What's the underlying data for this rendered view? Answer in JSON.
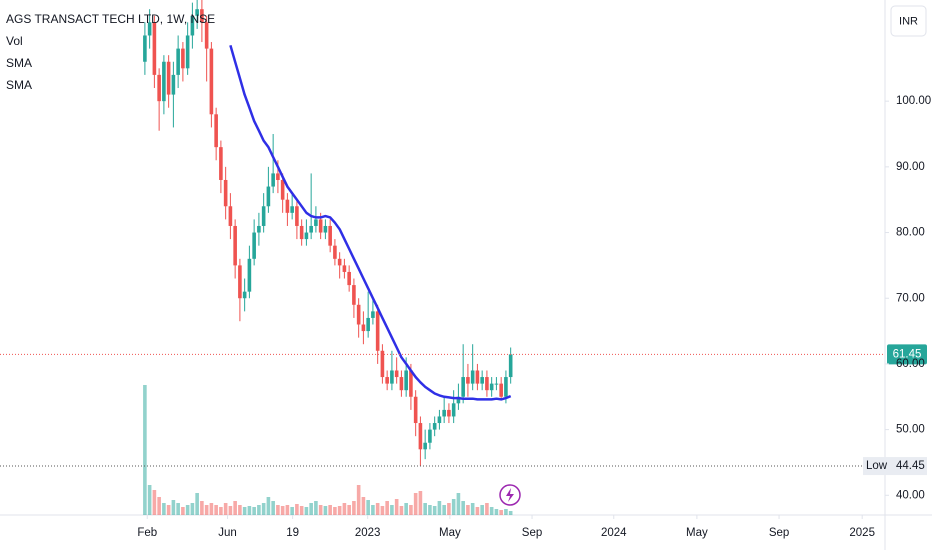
{
  "chart_data": {
    "type": "candlestick",
    "title": "AGS TRANSACT TECH LTD, 1W, NSE",
    "indicators": [
      "Vol",
      "SMA",
      "SMA"
    ],
    "currency": "INR",
    "up_color": "#26a69a",
    "down_color": "#ef5350",
    "grid": false,
    "categories": [
      null,
      null,
      null,
      null,
      null,
      null,
      null,
      null,
      null,
      null,
      null,
      null,
      null,
      null,
      null,
      null,
      null,
      null,
      null,
      null,
      null,
      null,
      null,
      null,
      null,
      null,
      null,
      null,
      null,
      null,
      null,
      null,
      null,
      null,
      null,
      null,
      null,
      null,
      null,
      null,
      null,
      null,
      null,
      null,
      null,
      null,
      null,
      null,
      null,
      null,
      null,
      null,
      null,
      null,
      null,
      null,
      null,
      null,
      null,
      null,
      null,
      null,
      null,
      null,
      null,
      null,
      null,
      null,
      null,
      null,
      null,
      null,
      null,
      null,
      null,
      null,
      null,
      null
    ],
    "open": [
      106,
      110,
      112,
      104,
      100,
      106,
      101,
      104,
      108,
      105,
      110,
      113,
      114,
      112,
      108,
      98,
      93,
      88,
      84,
      81,
      75,
      70,
      71,
      76,
      80,
      81,
      84,
      87,
      89,
      88,
      85,
      83,
      84,
      81,
      79,
      80,
      81,
      82,
      80,
      81,
      78,
      76,
      75,
      74,
      72,
      69,
      66,
      65,
      67,
      68,
      62,
      58,
      57,
      59,
      58,
      56,
      59,
      55,
      51,
      47,
      48,
      50,
      51,
      52,
      53,
      52,
      54,
      55,
      58,
      57,
      59,
      57,
      58,
      56,
      57,
      57,
      55,
      58
    ],
    "high": [
      112,
      114,
      113,
      105,
      107,
      107,
      106,
      110,
      109,
      112,
      115,
      116,
      116,
      113,
      109,
      99,
      94,
      90,
      86,
      82,
      76,
      73,
      78,
      82,
      83,
      86,
      90,
      95,
      91,
      89,
      86,
      86,
      85,
      82,
      82,
      89,
      84,
      83,
      82,
      82,
      79,
      77,
      76,
      75,
      73,
      70,
      68,
      71,
      70,
      69,
      63,
      59,
      62,
      61,
      59,
      61,
      60,
      56,
      52,
      50,
      51,
      52,
      53,
      55,
      54,
      56,
      57,
      63,
      60,
      63,
      60,
      59,
      59,
      58,
      58,
      58,
      59,
      62.5
    ],
    "low": [
      104,
      108,
      102,
      95.5,
      98,
      99,
      96,
      102,
      103,
      104,
      108,
      111,
      109,
      103,
      96,
      91,
      86,
      82,
      79,
      73,
      66.5,
      68,
      70,
      75,
      78,
      80,
      83,
      86,
      86,
      83,
      81,
      82,
      79,
      78,
      78,
      79,
      80,
      79,
      79,
      77,
      75,
      73,
      73,
      71,
      67,
      64,
      63,
      64,
      66,
      60,
      57,
      56,
      56,
      57,
      55,
      55,
      53,
      49,
      44.45,
      45.5,
      47,
      49,
      50,
      51,
      51,
      51,
      53,
      54,
      55,
      56,
      56,
      56,
      55,
      55,
      56,
      54.5,
      54,
      57
    ],
    "close": [
      110,
      112,
      104,
      100,
      106,
      101,
      104,
      108,
      105,
      110,
      113,
      114,
      112,
      108,
      98,
      93,
      88,
      84,
      81,
      75,
      70,
      71,
      76,
      80,
      81,
      84,
      87,
      89,
      88,
      85,
      83,
      84,
      81,
      79,
      80,
      81,
      82,
      80,
      81,
      78,
      76,
      75,
      74,
      72,
      69,
      66,
      65,
      67,
      68,
      62,
      58,
      57,
      59,
      58,
      56,
      59,
      55,
      51,
      47,
      48,
      50,
      51,
      52,
      53,
      52,
      54,
      55,
      58,
      57,
      59,
      57,
      58,
      56,
      57,
      57,
      55,
      58,
      61.45
    ],
    "volume": [
      130,
      30,
      25,
      18,
      12,
      10,
      15,
      12,
      8,
      10,
      12,
      22,
      14,
      10,
      12,
      10,
      8,
      12,
      9,
      14,
      10,
      8,
      9,
      8,
      10,
      12,
      18,
      14,
      10,
      9,
      10,
      8,
      11,
      9,
      8,
      12,
      14,
      10,
      9,
      10,
      8,
      9,
      12,
      10,
      14,
      30,
      18,
      15,
      10,
      12,
      9,
      14,
      10,
      16,
      9,
      12,
      10,
      22,
      24,
      12,
      10,
      9,
      14,
      10,
      12,
      16,
      22,
      14,
      10,
      12,
      8,
      10,
      12,
      8,
      6,
      5,
      6,
      4
    ],
    "sma": {
      "color": "#2f2fe6",
      "values": [
        null,
        null,
        null,
        null,
        null,
        null,
        null,
        null,
        null,
        null,
        null,
        null,
        null,
        null,
        null,
        null,
        null,
        null,
        108.5,
        106,
        103.5,
        101,
        99,
        97,
        95.5,
        94,
        93,
        91.5,
        90,
        88.5,
        87,
        86,
        85,
        84,
        83,
        82.5,
        82.3,
        82.3,
        82.5,
        82.3,
        81.5,
        80.5,
        79,
        77.5,
        76,
        74.5,
        73,
        71.5,
        70,
        68.5,
        67,
        65.5,
        64,
        62.5,
        61,
        60,
        59,
        58,
        57.2,
        56.5,
        56,
        55.5,
        55.2,
        55,
        54.9,
        54.8,
        54.8,
        54.7,
        54.7,
        54.7,
        54.6,
        54.6,
        54.6,
        54.6,
        54.7,
        54.6,
        54.8,
        55.1
      ]
    },
    "last_price": 61.45,
    "low_marker": {
      "label": "Low",
      "value": 44.45
    },
    "ylim": [
      37,
      115.4
    ],
    "yticks": [
      {
        "value": 40,
        "label": "40.00"
      },
      {
        "value": 50,
        "label": "50.00"
      },
      {
        "value": 60,
        "label": "60.00"
      },
      {
        "value": 70,
        "label": "70.00"
      },
      {
        "value": 80,
        "label": "80.00"
      },
      {
        "value": 90,
        "label": "90.00"
      },
      {
        "value": 100,
        "label": "100.00"
      }
    ],
    "xlim": [
      -30.5,
      155.8
    ],
    "xticks": [
      {
        "value": 0.5,
        "label": "Feb"
      },
      {
        "value": 17.4,
        "label": "Jun"
      },
      {
        "value": 31.1,
        "label": "19"
      },
      {
        "value": 46.9,
        "label": "2023"
      },
      {
        "value": 64.2,
        "label": "May"
      },
      {
        "value": 81.5,
        "label": "Sep"
      },
      {
        "value": 98.7,
        "label": "2024"
      },
      {
        "value": 116.2,
        "label": "May"
      },
      {
        "value": 133.5,
        "label": "Sep"
      },
      {
        "value": 151,
        "label": "2025"
      }
    ]
  }
}
